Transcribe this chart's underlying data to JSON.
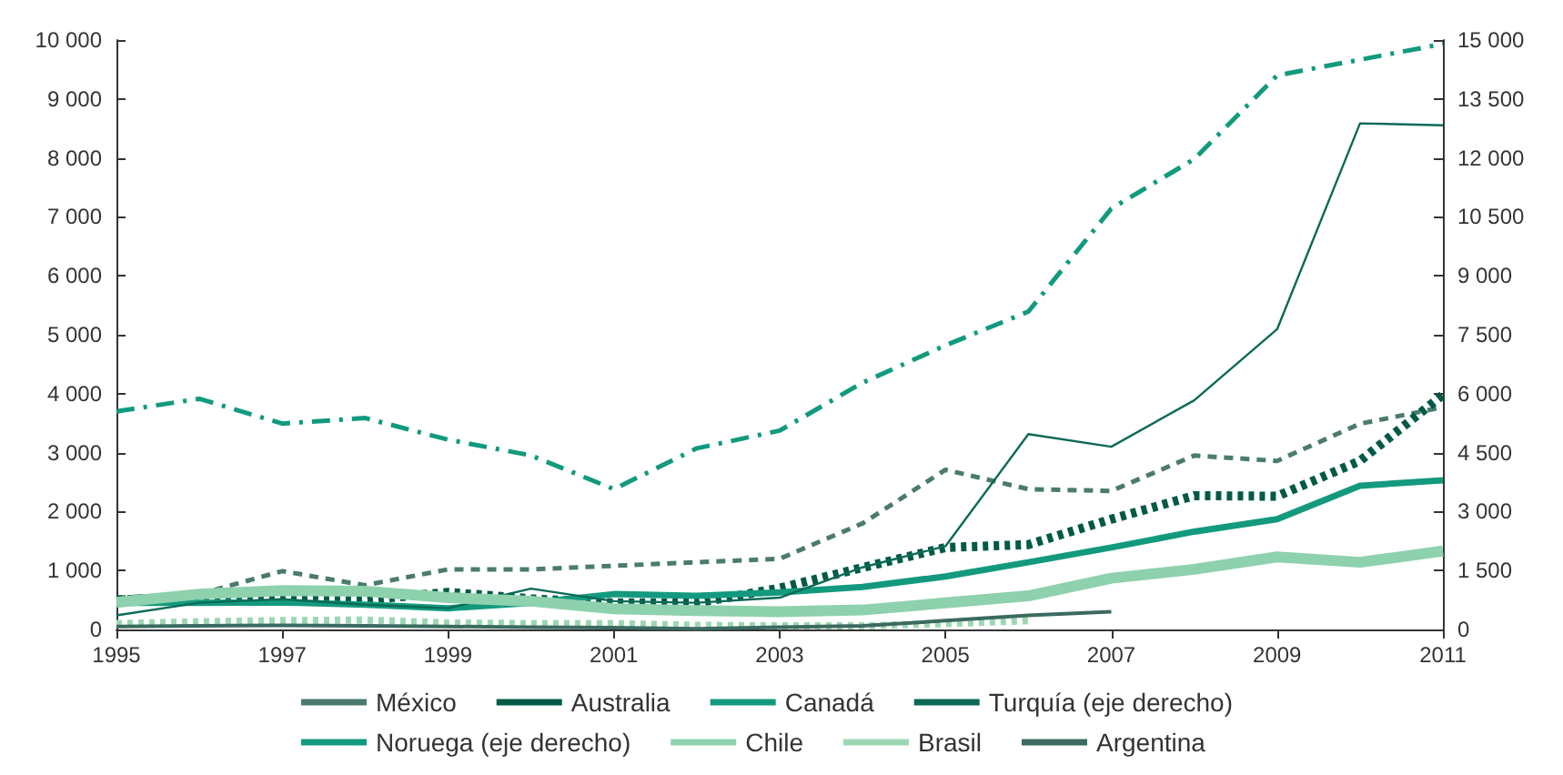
{
  "chart_data": {
    "type": "line",
    "x": [
      1995,
      1996,
      1997,
      1998,
      1999,
      2000,
      2001,
      2002,
      2003,
      2004,
      2005,
      2006,
      2007,
      2008,
      2009,
      2010,
      2011
    ],
    "xlim": [
      1995,
      2011
    ],
    "xticks": [
      1995,
      1997,
      1999,
      2001,
      2003,
      2005,
      2007,
      2009,
      2011
    ],
    "ylim": [
      0,
      10000
    ],
    "yticks": [
      0,
      {
        "value": 1000,
        "label": "1 000"
      },
      {
        "value": 2000,
        "label": "2 000"
      },
      {
        "value": 3000,
        "label": "3 000"
      },
      {
        "value": 4000,
        "label": "4 000"
      },
      {
        "value": 5000,
        "label": "5 000"
      },
      {
        "value": 6000,
        "label": "6 000"
      },
      {
        "value": 7000,
        "label": "7 000"
      },
      {
        "value": 8000,
        "label": "8 000"
      },
      {
        "value": 9000,
        "label": "9 000"
      },
      {
        "value": 10000,
        "label": "10 000"
      }
    ],
    "y2lim": [
      0,
      15000
    ],
    "y2ticks": [
      0,
      {
        "value": 1500,
        "label": "1 500"
      },
      {
        "value": 3000,
        "label": "3 000"
      },
      {
        "value": 4500,
        "label": "4 500"
      },
      {
        "value": 6000,
        "label": "6 000"
      },
      {
        "value": 7500,
        "label": "7 500"
      },
      {
        "value": 9000,
        "label": "9 000"
      },
      {
        "value": 10500,
        "label": "10 500"
      },
      {
        "value": 12000,
        "label": "12 000"
      },
      {
        "value": 13500,
        "label": "13 500"
      },
      {
        "value": 15000,
        "label": "15 000"
      }
    ],
    "grid": false,
    "legend": "bottom",
    "marker": "none",
    "series": [
      {
        "name": "México",
        "color": "#4a7b6e",
        "line_style": "dashed",
        "values": [
          540,
          600,
          990,
          750,
          1020,
          1020,
          1080,
          1140,
          1200,
          1800,
          2710,
          2380,
          2350,
          2950,
          2860,
          3490,
          3770
        ]
      },
      {
        "name": "Australia",
        "color": "#005a46",
        "line_style": "dotted",
        "values": [
          500,
          550,
          510,
          500,
          630,
          520,
          450,
          450,
          700,
          1050,
          1390,
          1440,
          1870,
          2270,
          2260,
          2860,
          3980
        ]
      },
      {
        "name": "Canadá",
        "color": "#139a7e",
        "line_style": "solid",
        "values": [
          450,
          450,
          460,
          420,
          360,
          450,
          600,
          570,
          630,
          720,
          900,
          1140,
          1390,
          1660,
          1870,
          2440,
          2530
        ]
      },
      {
        "name": "Turquía (eje derecho)",
        "axis": "y2",
        "color": "#0b6a56",
        "line_style": "solid",
        "values": [
          360,
          680,
          770,
          630,
          540,
          1040,
          720,
          680,
          810,
          1580,
          2120,
          4970,
          4650,
          5830,
          7640,
          12880,
          12830
        ]
      },
      {
        "name": "Noruega (eje derecho)",
        "axis": "y2",
        "color": "#119a7e",
        "line_style": "dashed",
        "values": [
          5550,
          5870,
          5240,
          5380,
          4830,
          4430,
          3570,
          4610,
          5060,
          6280,
          7230,
          8090,
          10710,
          11970,
          14100,
          14500,
          14900
        ]
      },
      {
        "name": "Chile",
        "color": "#8ed1ad",
        "line_style": "solid",
        "values": [
          460,
          600,
          660,
          650,
          540,
          480,
          350,
          320,
          300,
          330,
          450,
          570,
          870,
          1020,
          1230,
          1140,
          1330
        ]
      },
      {
        "name": "Brasil",
        "color": "#9cd7b3",
        "line_style": "dotted",
        "values": [
          100,
          130,
          150,
          160,
          110,
          100,
          100,
          70,
          60,
          60,
          100,
          150,
          null,
          null,
          null,
          null,
          null
        ]
      },
      {
        "name": "Argentina",
        "color": "#3b6b60",
        "line_style": "solid",
        "values": [
          50,
          60,
          70,
          60,
          50,
          40,
          30,
          10,
          40,
          60,
          150,
          240,
          300,
          null,
          null,
          null,
          null
        ]
      }
    ]
  }
}
